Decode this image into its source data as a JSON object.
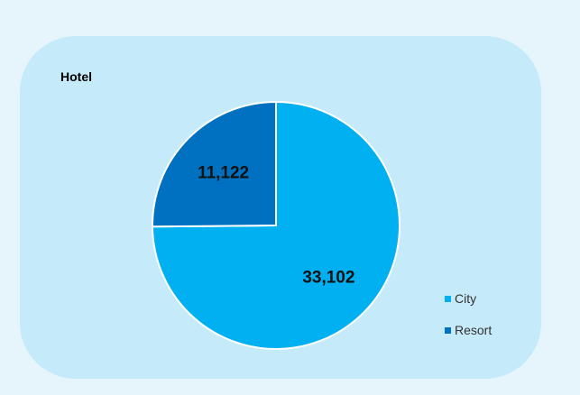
{
  "chart_data": {
    "type": "pie",
    "title": "Hotel",
    "categories": [
      "City",
      "Resort"
    ],
    "values": [
      33102,
      11122
    ],
    "value_labels": [
      "33,102",
      "11,122"
    ],
    "colors": [
      "#00b0f0",
      "#0070c0"
    ],
    "legend": {
      "position": "bottom-right",
      "items": [
        {
          "label": "City",
          "color": "#00b0f0"
        },
        {
          "label": "Resort",
          "color": "#0070c0"
        }
      ]
    }
  },
  "colors": {
    "page_background": "#e6f5fc",
    "panel_background": "#c5eaf9",
    "slice_border": "#ffffff"
  }
}
